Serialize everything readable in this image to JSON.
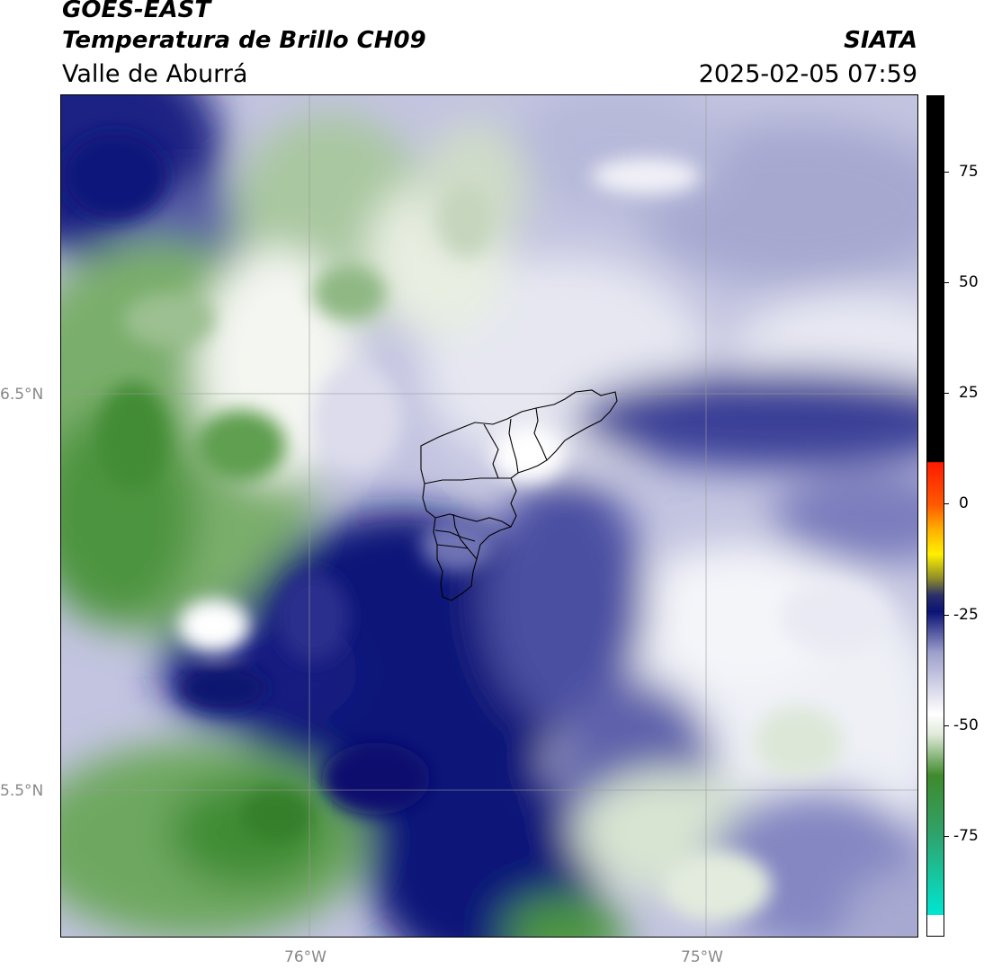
{
  "header": {
    "satellite": "GOES-EAST",
    "product": "Temperatura de Brillo CH09",
    "region": "Valle de Aburrá",
    "organization": "SIATA",
    "timestamp": "2025-02-05 07:59"
  },
  "axes": {
    "lat_labels": [
      "6.5°N",
      "5.5°N"
    ],
    "lon_labels": [
      "76°W",
      "75°W"
    ]
  },
  "colorbar": {
    "ticks": [
      "75",
      "50",
      "25",
      "0",
      "-25",
      "-50",
      "-75"
    ],
    "palette": {
      "teal": "#00e6d2",
      "green_dark": "#3a8a2a",
      "green_light": "#dfe9d9",
      "white": "#ffffff",
      "lavender": "#9ea0cc",
      "navy": "#0a1275",
      "orange": "#ff8a00",
      "yellow": "#fff000",
      "red": "#ff1a00",
      "black": "#000000"
    }
  }
}
